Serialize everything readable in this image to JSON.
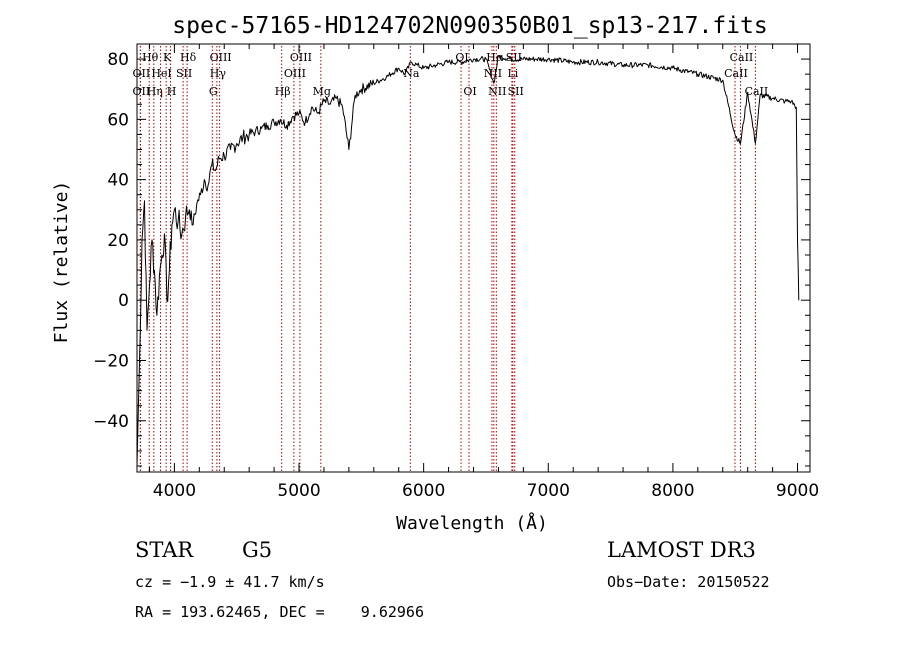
{
  "chart_data": {
    "type": "line",
    "title": "spec-57165-HD124702N090350B01_sp13-217.fits",
    "xlabel": "Wavelength (Å)",
    "ylabel": "Flux (relative)",
    "xlim": [
      3700,
      9100
    ],
    "ylim": [
      -57,
      85
    ],
    "xticks": [
      4000,
      5000,
      6000,
      7000,
      8000,
      9000
    ],
    "yticks": [
      -40,
      -20,
      0,
      20,
      40,
      60,
      80
    ],
    "series": [
      {
        "name": "flux",
        "x": [
          3700,
          3720,
          3740,
          3760,
          3780,
          3800,
          3820,
          3840,
          3860,
          3880,
          3900,
          3920,
          3940,
          3960,
          3980,
          4000,
          4030,
          4060,
          4090,
          4120,
          4150,
          4180,
          4210,
          4240,
          4270,
          4300,
          4330,
          4360,
          4400,
          4450,
          4500,
          4550,
          4600,
          4650,
          4700,
          4750,
          4800,
          4850,
          4900,
          4950,
          5000,
          5050,
          5100,
          5150,
          5200,
          5250,
          5300,
          5350,
          5400,
          5450,
          5500,
          5600,
          5700,
          5800,
          5850,
          5900,
          5950,
          6000,
          6100,
          6200,
          6300,
          6400,
          6500,
          6563,
          6600,
          6700,
          6800,
          6900,
          7000,
          7200,
          7400,
          7600,
          7800,
          8000,
          8200,
          8400,
          8498,
          8542,
          8600,
          8662,
          8700,
          8800,
          8900,
          8950,
          8990,
          9000,
          9010
        ],
        "y": [
          -55,
          -20,
          20,
          33,
          -10,
          5,
          20,
          10,
          -5,
          8,
          15,
          22,
          0,
          10,
          25,
          30,
          26,
          22,
          28,
          30,
          25,
          32,
          35,
          40,
          38,
          45,
          43,
          47,
          48,
          50,
          52,
          54,
          55,
          56,
          57,
          58,
          59,
          60,
          58,
          61,
          62,
          59,
          64,
          62,
          66,
          65,
          67,
          64,
          50,
          68,
          70,
          72,
          74,
          77,
          75,
          79,
          78,
          77,
          78,
          79,
          79,
          80,
          80,
          72,
          81,
          80,
          80,
          80,
          80,
          79,
          79,
          78,
          78,
          77,
          75,
          73,
          55,
          52,
          69,
          52,
          68,
          67,
          66,
          66,
          64,
          20,
          0
        ]
      }
    ],
    "line_marks": [
      {
        "label": "Hθ",
        "x": 3798,
        "row": 1
      },
      {
        "label": "OII",
        "x": 3727,
        "row": 2
      },
      {
        "label": "OII",
        "x": 3727,
        "row": 3
      },
      {
        "label": "Hη",
        "x": 3835,
        "row": 3
      },
      {
        "label": "K",
        "x": 3934,
        "row": 1
      },
      {
        "label": "HeI",
        "x": 3889,
        "row": 2
      },
      {
        "label": "H",
        "x": 3969,
        "row": 3
      },
      {
        "label": "Hδ",
        "x": 4102,
        "row": 1
      },
      {
        "label": "SII",
        "x": 4070,
        "row": 2
      },
      {
        "label": "OIII",
        "x": 4363,
        "row": 1
      },
      {
        "label": "Hγ",
        "x": 4341,
        "row": 2
      },
      {
        "label": "G",
        "x": 4304,
        "row": 3
      },
      {
        "label": "OIII",
        "x": 5007,
        "row": 1
      },
      {
        "label": "OIII",
        "x": 4959,
        "row": 2
      },
      {
        "label": "Hβ",
        "x": 4861,
        "row": 3
      },
      {
        "label": "Mg",
        "x": 5175,
        "row": 3
      },
      {
        "label": "Na",
        "x": 5893,
        "row": 2
      },
      {
        "label": "OI",
        "x": 6300,
        "row": 1
      },
      {
        "label": "OI",
        "x": 6364,
        "row": 3
      },
      {
        "label": "Hα",
        "x": 6563,
        "row": 1
      },
      {
        "label": "NII",
        "x": 6548,
        "row": 2
      },
      {
        "label": "NII",
        "x": 6583,
        "row": 3
      },
      {
        "label": "SII",
        "x": 6716,
        "row": 1
      },
      {
        "label": "Li",
        "x": 6708,
        "row": 2
      },
      {
        "label": "SII",
        "x": 6731,
        "row": 3
      },
      {
        "label": "CaII",
        "x": 8542,
        "row": 1
      },
      {
        "label": "CaII",
        "x": 8498,
        "row": 2
      },
      {
        "label": "CaII",
        "x": 8662,
        "row": 3
      }
    ]
  },
  "info": {
    "object_class": "STAR",
    "subclass": "G5",
    "survey": "LAMOST DR3",
    "cz": "cz = −1.9 ± 41.7 km/s",
    "obs_date": "Obs−Date: 20150522",
    "coords": "RA = 193.62465, DEC =    9.62966"
  },
  "colors": {
    "spectrum": "#000000",
    "line_marker": "#b00000",
    "background": "#ffffff"
  }
}
